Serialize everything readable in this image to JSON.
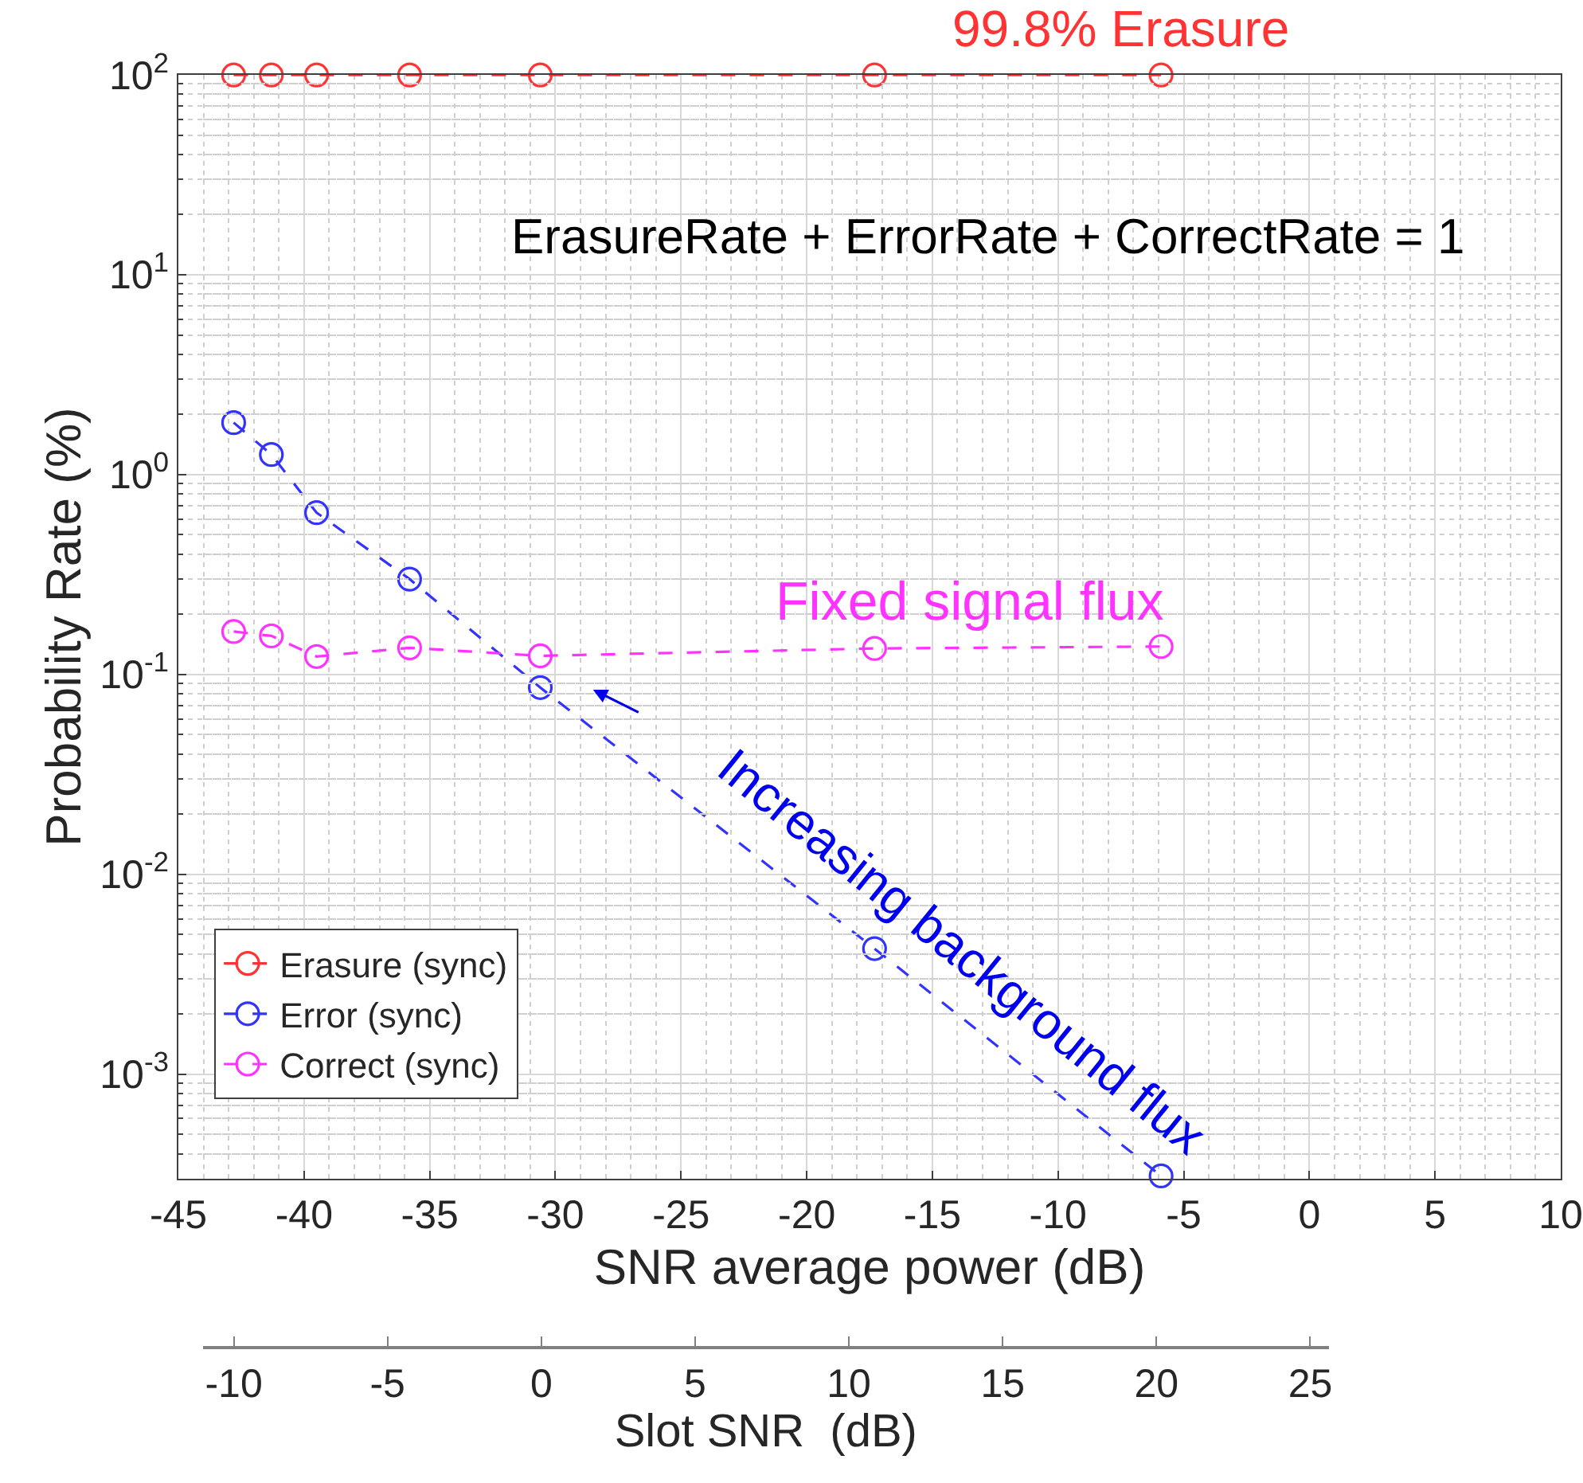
{
  "chart_data": {
    "type": "line",
    "xlabel": "SNR average power (dB)",
    "ylabel": "Probability Rate (%)",
    "x2label": "Slot SNR  (dB)",
    "x": [
      -42.8,
      -41.3,
      -39.5,
      -35.8,
      -30.6,
      -17.3,
      -5.9
    ],
    "series": [
      {
        "name": "Erasure (sync)",
        "color": "#ff3333",
        "values": [
          99.8,
          99.8,
          99.8,
          99.8,
          99.8,
          99.8,
          99.8
        ]
      },
      {
        "name": "Error (sync)",
        "color": "#3333ff",
        "values": [
          1.82,
          1.26,
          0.645,
          0.3,
          0.086,
          0.00425,
          0.00031
        ]
      },
      {
        "name": "Correct (sync)",
        "color": "#ff33ff",
        "values": [
          0.164,
          0.156,
          0.123,
          0.136,
          0.124,
          0.135,
          0.138
        ]
      }
    ],
    "log": "y",
    "xlim": [
      -45,
      10
    ],
    "xticks": [
      -45,
      -40,
      -35,
      -30,
      -25,
      -20,
      -15,
      -10,
      -5,
      0,
      5,
      10
    ],
    "ylim": [
      0.0003,
      100
    ],
    "yticks": [
      {
        "value": 0.001,
        "label": "10$^{-3}$"
      },
      {
        "value": 0.01,
        "label": "10$^{-2}$"
      },
      {
        "value": 0.1,
        "label": "10$^{-1}$"
      },
      {
        "value": 1,
        "label": "10$^{0}$"
      },
      {
        "value": 10,
        "label": "10$^{1}$"
      },
      {
        "value": 100,
        "label": "10$^{2}$"
      }
    ],
    "x2lim": [
      -11,
      25.6
    ],
    "x2ticks": [
      -10,
      -5,
      0,
      5,
      10,
      15,
      20,
      25
    ],
    "grid": true,
    "legend": "bottom left",
    "marker": "circle",
    "line_style": "dashed",
    "annotations": [
      "99.8% Erasure",
      "ErasureRate + ErrorRate + CorrectRate = 1",
      "Fixed signal flux",
      "Increasing background flux"
    ]
  }
}
